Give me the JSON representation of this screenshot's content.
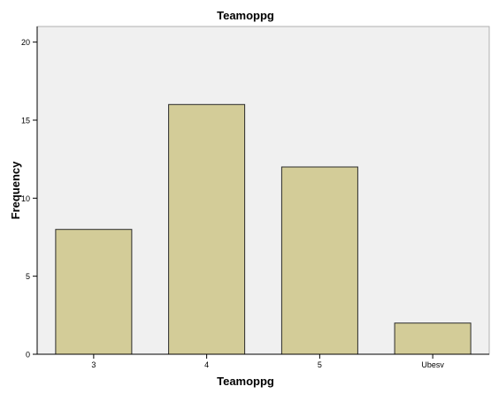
{
  "chart_data": {
    "type": "bar",
    "title": "Teamoppg",
    "xlabel": "Teamoppg",
    "ylabel": "Frequency",
    "categories": [
      "3",
      "4",
      "5",
      "Ubesv"
    ],
    "values": [
      8,
      16,
      12,
      2
    ],
    "ylim": [
      0,
      21
    ],
    "yticks": [
      0,
      5,
      10,
      15,
      20
    ],
    "grid": false,
    "legend": "none",
    "colors": {
      "bar_fill": "#d3cc98",
      "bar_stroke": "#2b2b2b",
      "plot_background": "#f0f0f0",
      "axis": "#000000",
      "text": "#000000"
    }
  }
}
